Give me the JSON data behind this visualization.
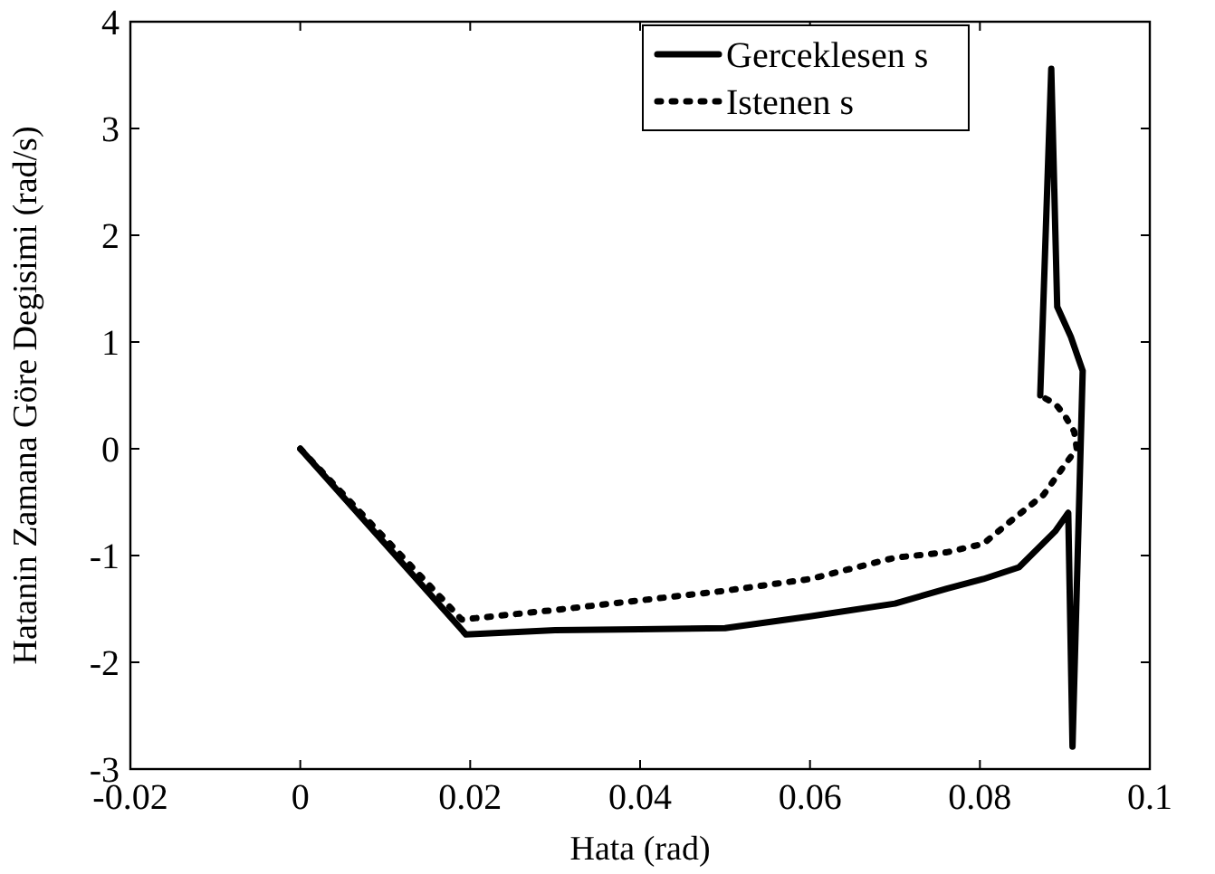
{
  "chart_data": {
    "type": "line",
    "xlabel": "Hata (rad)",
    "ylabel": "Hatanin Zamana Göre Degisimi (rad/s)",
    "xlim": [
      -0.02,
      0.1
    ],
    "ylim": [
      -3,
      4
    ],
    "xticks": [
      -0.02,
      0,
      0.02,
      0.04,
      0.06,
      0.08,
      0.1
    ],
    "yticks": [
      -3,
      -2,
      -1,
      0,
      1,
      2,
      3,
      4
    ],
    "legend": "top right",
    "grid": false,
    "series": [
      {
        "name": "Gerceklesen s",
        "color": "#000000",
        "line_style": "solid",
        "x": [
          0,
          0.0195,
          0.03,
          0.04,
          0.05,
          0.06,
          0.07,
          0.0761,
          0.0804,
          0.0846,
          0.0889,
          0.0904,
          0.0909,
          0.0921,
          0.0907,
          0.0891,
          0.0884,
          0.0871
        ],
        "values": [
          0,
          -1.74,
          -1.7,
          -1.69,
          -1.68,
          -1.57,
          -1.45,
          -1.31,
          -1.22,
          -1.11,
          -0.77,
          -0.6,
          -2.79,
          0.73,
          1.05,
          1.33,
          3.56,
          0.5
        ]
      },
      {
        "name": "Istenen s",
        "color": "#000000",
        "line_style": "dotted",
        "x": [
          0,
          0.019,
          0.03,
          0.04,
          0.05,
          0.06,
          0.07,
          0.0761,
          0.0804,
          0.0839,
          0.0875,
          0.09,
          0.0914,
          0.0911,
          0.09,
          0.0889,
          0.0875
        ],
        "values": [
          0,
          -1.6,
          -1.51,
          -1.42,
          -1.33,
          -1.22,
          -1.02,
          -0.97,
          -0.89,
          -0.66,
          -0.43,
          -0.15,
          0,
          0.16,
          0.31,
          0.42,
          0.48
        ]
      }
    ]
  }
}
